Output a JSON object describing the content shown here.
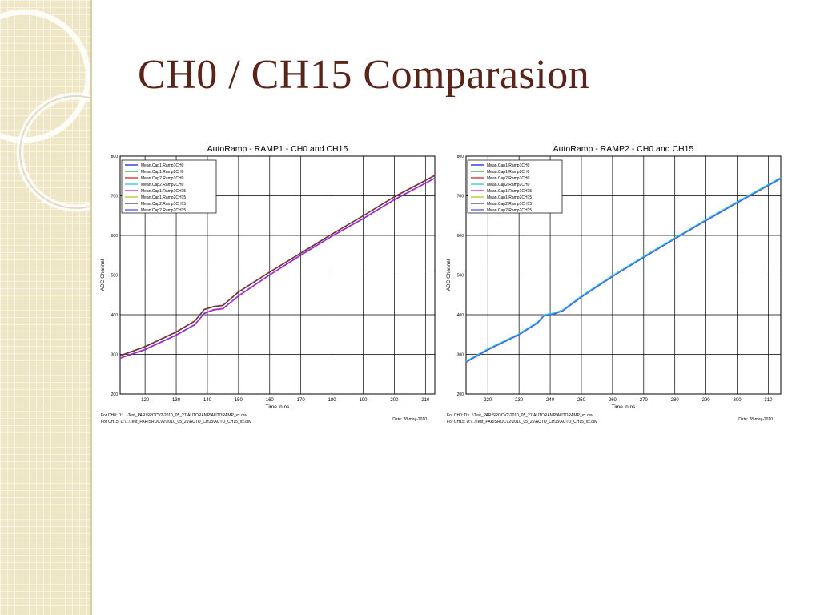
{
  "slide": {
    "title": "CH0 / CH15 Comparasion"
  },
  "colors": {
    "title": "#5a2418",
    "sidebar": "#efe6c6"
  },
  "chart_data": [
    {
      "type": "line",
      "title": "AutoRamp - RAMP1 - CH0 and CH15",
      "xlabel": "Time in ns",
      "ylabel": "ADC Channel",
      "xlim": [
        112,
        213
      ],
      "ylim": [
        200,
        800
      ],
      "xticks": [
        120,
        130,
        140,
        150,
        160,
        170,
        180,
        190,
        200,
        210
      ],
      "yticks": [
        200,
        300,
        400,
        500,
        600,
        700,
        800
      ],
      "grid": true,
      "legend_position": "top-left",
      "series": [
        {
          "name": "Mean.Cap1.Ramp1CH0",
          "color": "#2222dd",
          "x": [
            112,
            120,
            130,
            136,
            139,
            142,
            145,
            150,
            160,
            170,
            180,
            190,
            200,
            213
          ],
          "y": [
            290,
            312,
            348,
            375,
            403,
            412,
            415,
            447,
            500,
            550,
            598,
            642,
            690,
            744
          ]
        },
        {
          "name": "Mean.Cap1.Ramp2CH0",
          "color": "#22aa44",
          "x": [],
          "y": []
        },
        {
          "name": "Mean.Cap2.Ramp1CH0",
          "color": "#dd2222",
          "x": [
            112,
            120,
            130,
            136,
            139,
            142,
            145,
            150,
            160,
            170,
            180,
            190,
            200,
            213
          ],
          "y": [
            297,
            320,
            357,
            385,
            414,
            421,
            424,
            458,
            508,
            556,
            604,
            650,
            698,
            752
          ]
        },
        {
          "name": "Mean.Cap2.Ramp2CH0",
          "color": "#22cccc",
          "x": [],
          "y": []
        },
        {
          "name": "Mean.Cap1.Ramp1CH15",
          "color": "#cc22cc",
          "x": [
            112,
            120,
            130,
            136,
            139,
            142,
            145,
            150,
            160,
            170,
            180,
            190,
            200,
            213
          ],
          "y": [
            291,
            313,
            349,
            376,
            404,
            413,
            416,
            448,
            501,
            551,
            599,
            643,
            691,
            745
          ]
        },
        {
          "name": "Mean.Cap1.Ramp2CH15",
          "color": "#aacc22",
          "x": [],
          "y": []
        },
        {
          "name": "Mean.Cap2.Ramp1CH15",
          "color": "#444444",
          "x": [
            112,
            120,
            130,
            136,
            139,
            142,
            145,
            150,
            160,
            170,
            180,
            190,
            200,
            213
          ],
          "y": [
            296,
            319,
            356,
            384,
            413,
            420,
            423,
            457,
            507,
            555,
            603,
            649,
            697,
            751
          ]
        },
        {
          "name": "Mean.Cap2.Ramp2CH15",
          "color": "#5555ff",
          "x": [],
          "y": []
        }
      ],
      "footnotes": [
        "For CH0: D:\\...\\Test_PARISROCV2\\2010_05_21\\AUTORAMP\\AUTORAMP_xx.csv",
        "For CH15: D:\\...\\Test_PARISROCV2\\2010_05_26\\AUTO_CH15\\AUTO_CH15_xx.csv"
      ],
      "date": "Date: 28-may-2010"
    },
    {
      "type": "line",
      "title": "AutoRamp - RAMP2 - CH0 and CH15",
      "xlabel": "Time in ns",
      "ylabel": "ADC Channel",
      "xlim": [
        213,
        314
      ],
      "ylim": [
        200,
        800
      ],
      "xticks": [
        220,
        230,
        240,
        250,
        260,
        270,
        280,
        290,
        300,
        310
      ],
      "yticks": [
        200,
        300,
        400,
        500,
        600,
        700,
        800
      ],
      "grid": true,
      "legend_position": "top-left",
      "series": [
        {
          "name": "Mean.Cap1.Ramp1CH0",
          "color": "#2222dd",
          "x": [],
          "y": []
        },
        {
          "name": "Mean.Cap1.Ramp2CH0",
          "color": "#22aa44",
          "x": [
            213,
            220,
            230,
            236,
            238,
            241,
            244,
            250,
            260,
            270,
            280,
            290,
            300,
            314
          ],
          "y": [
            281,
            312,
            350,
            380,
            398,
            402,
            410,
            445,
            497,
            545,
            592,
            638,
            683,
            744
          ]
        },
        {
          "name": "Mean.Cap2.Ramp1CH0",
          "color": "#dd2222",
          "x": [],
          "y": []
        },
        {
          "name": "Mean.Cap2.Ramp2CH0",
          "color": "#22cccc",
          "x": [
            213,
            220,
            230,
            236,
            238,
            241,
            244,
            250,
            260,
            270,
            280,
            290,
            300,
            314
          ],
          "y": [
            283,
            314,
            352,
            382,
            400,
            404,
            412,
            447,
            499,
            547,
            594,
            640,
            685,
            746
          ]
        },
        {
          "name": "Mean.Cap1.Ramp1CH15",
          "color": "#cc22cc",
          "x": [],
          "y": []
        },
        {
          "name": "Mean.Cap1.Ramp2CH15",
          "color": "#aacc22",
          "x": [],
          "y": []
        },
        {
          "name": "Mean.Cap2.Ramp1CH15",
          "color": "#444444",
          "x": [],
          "y": []
        },
        {
          "name": "Mean.Cap2.Ramp2CH15",
          "color": "#5555ff",
          "x": [
            213,
            220,
            230,
            236,
            238,
            241,
            244,
            250,
            260,
            270,
            280,
            290,
            300,
            314
          ],
          "y": [
            280,
            311,
            349,
            379,
            397,
            401,
            409,
            444,
            496,
            544,
            591,
            637,
            682,
            743
          ]
        }
      ],
      "footnotes": [
        "For CH0: D:\\...\\Test_PARISROCV2\\2010_05_21\\AUTORAMP\\AUTORAMP_xx.csv",
        "For CH15: D:\\...\\Test_PARISROCV2\\2010_05_26\\AUTO_CH15\\AUTO_CH15_xx.csv"
      ],
      "date": "Date: 28-may-2010"
    }
  ]
}
